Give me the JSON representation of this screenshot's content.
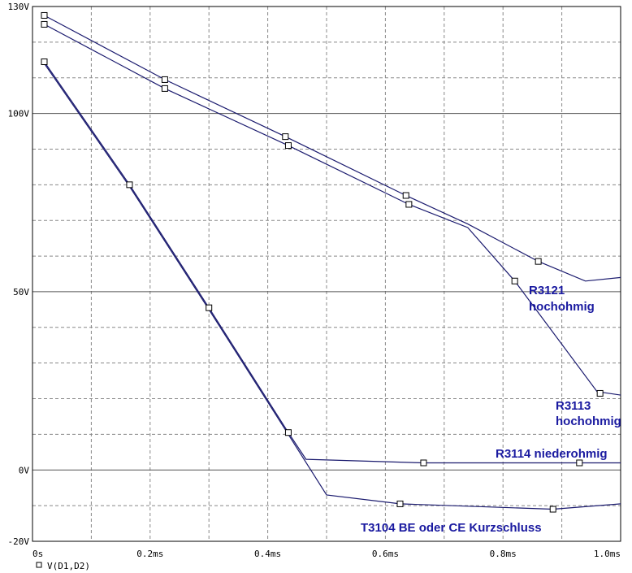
{
  "chart_data": {
    "type": "line",
    "x_unit": "ms",
    "xlim": [
      0,
      1.0
    ],
    "ylim": [
      -20,
      130
    ],
    "x_ticks": [
      {
        "value": 0,
        "label": "0s"
      },
      {
        "value": 0.2,
        "label": "0.2ms"
      },
      {
        "value": 0.4,
        "label": "0.4ms"
      },
      {
        "value": 0.6,
        "label": "0.6ms"
      },
      {
        "value": 0.8,
        "label": "0.8ms"
      },
      {
        "value": 1.0,
        "label": "1.0ms"
      }
    ],
    "y_ticks": [
      {
        "value": -20,
        "label": "-20V"
      },
      {
        "value": 0,
        "label": "0V"
      },
      {
        "value": 50,
        "label": "50V"
      },
      {
        "value": 100,
        "label": "100V"
      },
      {
        "value": 130,
        "label": "130V"
      }
    ],
    "grid": true,
    "legend": {
      "label": "V(D1,D2)",
      "position": "bottom-left"
    },
    "series": [
      {
        "annotation": "R3121 hochohmig",
        "points": [
          [
            0.02,
            127.5
          ],
          [
            0.225,
            109.5
          ],
          [
            0.43,
            93.5
          ],
          [
            0.635,
            77
          ],
          [
            0.74,
            69
          ],
          [
            0.86,
            58.5
          ],
          [
            0.94,
            53
          ],
          [
            1.0,
            54
          ]
        ],
        "markers": [
          [
            0.02,
            127.5
          ],
          [
            0.225,
            109.5
          ],
          [
            0.43,
            93.5
          ],
          [
            0.635,
            77
          ],
          [
            0.86,
            58.5
          ]
        ]
      },
      {
        "annotation": "R3113 hochohmig",
        "points": [
          [
            0.02,
            125
          ],
          [
            0.225,
            107
          ],
          [
            0.435,
            91
          ],
          [
            0.64,
            74.5
          ],
          [
            0.74,
            68
          ],
          [
            0.82,
            53
          ],
          [
            0.96,
            22
          ],
          [
            1.0,
            21
          ]
        ],
        "markers": [
          [
            0.02,
            125
          ],
          [
            0.225,
            107
          ],
          [
            0.435,
            91
          ],
          [
            0.64,
            74.5
          ],
          [
            0.82,
            53
          ],
          [
            0.965,
            21.5
          ]
        ]
      },
      {
        "annotation": "R3114 niederohmig",
        "points": [
          [
            0.02,
            114.5
          ],
          [
            0.165,
            80
          ],
          [
            0.3,
            45.5
          ],
          [
            0.435,
            10.5
          ],
          [
            0.465,
            3
          ],
          [
            0.665,
            2
          ],
          [
            0.93,
            2
          ],
          [
            1.0,
            2
          ]
        ],
        "markers": [
          [
            0.02,
            114.5
          ],
          [
            0.165,
            80
          ],
          [
            0.3,
            45.5
          ],
          [
            0.435,
            10.5
          ],
          [
            0.665,
            2
          ],
          [
            0.93,
            2
          ]
        ]
      },
      {
        "annotation": "T3104 BE oder CE Kurzschluss",
        "points": [
          [
            0.02,
            114
          ],
          [
            0.165,
            79.5
          ],
          [
            0.3,
            45
          ],
          [
            0.435,
            10
          ],
          [
            0.5,
            -7
          ],
          [
            0.625,
            -9.5
          ],
          [
            0.885,
            -11
          ],
          [
            1.0,
            -9.5
          ]
        ],
        "markers": [
          [
            0.625,
            -9.5
          ],
          [
            0.885,
            -11
          ]
        ]
      }
    ]
  },
  "colors": {
    "curve": "#1a1a6e",
    "grid": "#888888",
    "annotation": "#1a1aa0"
  }
}
